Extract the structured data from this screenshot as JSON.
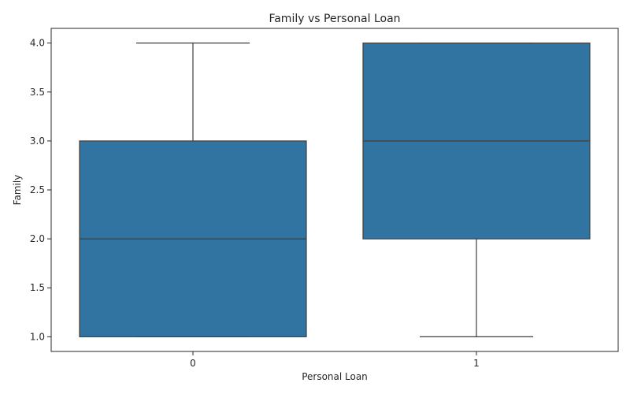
{
  "chart_data": {
    "type": "box",
    "title": "Family vs Personal Loan",
    "xlabel": "Personal Loan",
    "ylabel": "Family",
    "categories": [
      "0",
      "1"
    ],
    "boxes": [
      {
        "category": "0",
        "min": 1.0,
        "q1": 1.0,
        "median": 2.0,
        "q3": 3.0,
        "max": 4.0
      },
      {
        "category": "1",
        "min": 1.0,
        "q1": 2.0,
        "median": 3.0,
        "q3": 4.0,
        "max": 4.0
      }
    ],
    "ylim": [
      0.85,
      4.15
    ],
    "yticks": [
      "1.0",
      "1.5",
      "2.0",
      "2.5",
      "3.0",
      "3.5",
      "4.0"
    ],
    "grid": false,
    "colors": {
      "box": "#3274a1",
      "line": "#3f3f3f",
      "axis": "#262626"
    }
  }
}
